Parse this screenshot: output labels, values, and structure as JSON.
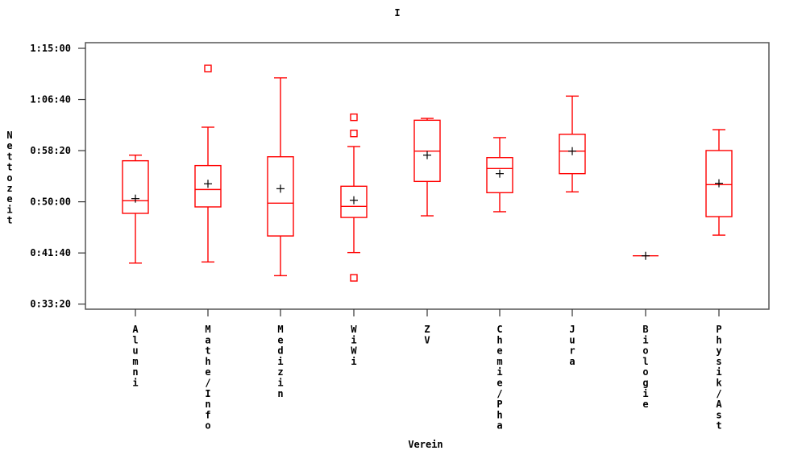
{
  "chart_data": {
    "type": "boxplot",
    "title": "I",
    "xlabel": "Verein",
    "ylabel": "Nettozeit",
    "y_unit": "seconds",
    "ylim": [
      2000,
      4500
    ],
    "yticks": [
      2000,
      2500,
      3000,
      3500,
      4000,
      4500
    ],
    "ytick_labels": [
      "0:33:20",
      "0:41:40",
      "0:50:00",
      "0:58:20",
      "1:06:40",
      "1:15:00"
    ],
    "box_color": "#ff0000",
    "mean_marker_color": "#000000",
    "categories": [
      "Alumni",
      "Mathe/Info",
      "Medizin",
      "WiWi",
      "ZV",
      "Chemie/Pha",
      "Jura",
      "Biologie",
      "Physik/Ast"
    ],
    "boxes": [
      {
        "whisker_low": 2401,
        "q1": 2887,
        "median": 3010,
        "q3": 3401,
        "whisker_high": 3456,
        "mean": 3031,
        "outliers": []
      },
      {
        "whisker_low": 2412,
        "q1": 2950,
        "median": 3120,
        "q3": 3354,
        "whisker_high": 3729,
        "mean": 3176,
        "outliers": [
          4303
        ]
      },
      {
        "whisker_low": 2278,
        "q1": 2666,
        "median": 2987,
        "q3": 3440,
        "whisker_high": 4211,
        "mean": 3128,
        "outliers": []
      },
      {
        "whisker_low": 2504,
        "q1": 2847,
        "median": 2955,
        "q3": 3152,
        "whisker_high": 3540,
        "mean": 3015,
        "outliers": [
          3826,
          3668,
          2257
        ]
      },
      {
        "whisker_low": 2863,
        "q1": 3199,
        "median": 3495,
        "q3": 3797,
        "whisker_high": 3815,
        "mean": 3456,
        "outliers": []
      },
      {
        "whisker_low": 2903,
        "q1": 3089,
        "median": 3325,
        "q3": 3432,
        "whisker_high": 3627,
        "mean": 3275,
        "outliers": []
      },
      {
        "whisker_low": 3097,
        "q1": 3275,
        "median": 3495,
        "q3": 3660,
        "whisker_high": 4033,
        "mean": 3495,
        "outliers": []
      },
      {
        "whisker_low": 2472,
        "q1": 2472,
        "median": 2472,
        "q3": 2472,
        "whisker_high": 2472,
        "mean": 2472,
        "outliers": []
      },
      {
        "whisker_low": 2674,
        "q1": 2855,
        "median": 3168,
        "q3": 3501,
        "whisker_high": 3705,
        "mean": 3181,
        "outliers": []
      }
    ]
  }
}
